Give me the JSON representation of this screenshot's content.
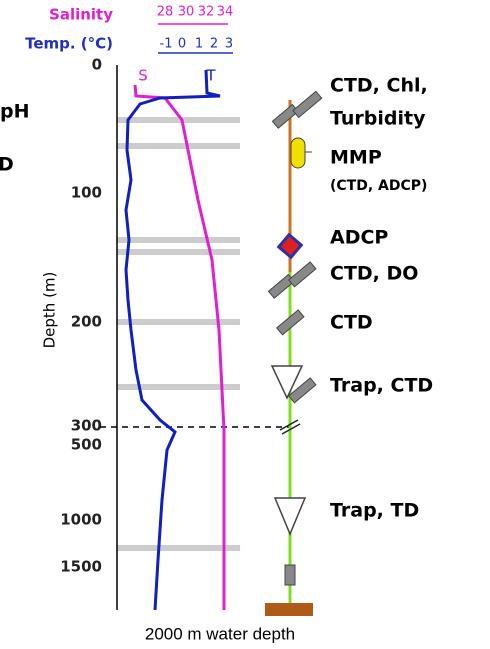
{
  "header": {
    "salinity_label": "Salinity",
    "salinity_ticks": [
      "28",
      "30",
      "32",
      "34"
    ],
    "temp_label": "Temp. (°C)",
    "temp_ticks": [
      "-1",
      "0",
      "1",
      "2",
      "3"
    ]
  },
  "axis": {
    "label": "Depth (m)",
    "ticks": [
      "0",
      "100",
      "200",
      "300",
      "500",
      "1000",
      "1500"
    ]
  },
  "curve_labels": {
    "salinity": "S",
    "temperature": "T"
  },
  "side_labels": [
    "pH",
    "D"
  ],
  "instruments": [
    "CTD, Chl,",
    "Turbidity",
    "MMP",
    "(CTD, ADCP)",
    "ADCP",
    "CTD, DO",
    "CTD",
    "Trap, CTD",
    "Trap, TD"
  ],
  "footer": "2000 m water depth"
}
